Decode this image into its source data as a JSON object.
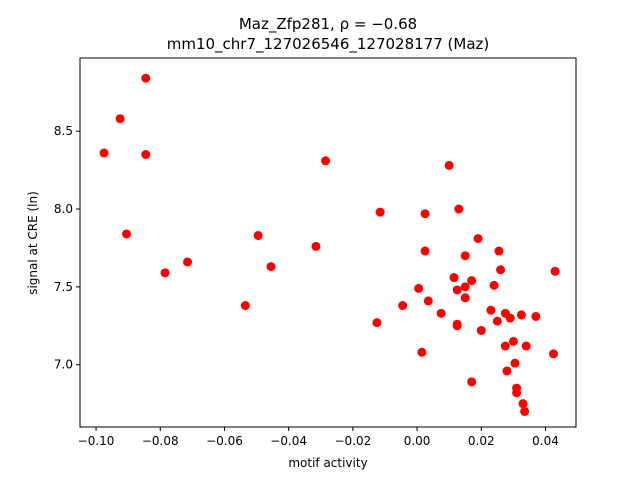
{
  "chart_data": {
    "type": "scatter",
    "title_line1": "Maz_Zfp281, ρ = −0.68",
    "title_line2": "mm10_chr7_127026546_127028177 (Maz)",
    "xlabel": "motif activity",
    "ylabel": "signal at CRE (ln)",
    "xlim": [
      -0.105,
      0.0495
    ],
    "ylim": [
      6.6,
      8.97
    ],
    "xticks": [
      -0.1,
      -0.08,
      -0.06,
      -0.04,
      -0.02,
      0.0,
      0.02,
      0.04
    ],
    "xtick_labels": [
      "−0.10",
      "−0.08",
      "−0.06",
      "−0.04",
      "−0.02",
      "0.00",
      "0.02",
      "0.04"
    ],
    "yticks": [
      7.0,
      7.5,
      8.0,
      8.5
    ],
    "ytick_labels": [
      "7.0",
      "7.5",
      "8.0",
      "8.5"
    ],
    "grid": false,
    "marker_color": "#ff0000",
    "points": [
      {
        "x": -0.0975,
        "y": 8.36
      },
      {
        "x": -0.0925,
        "y": 8.58
      },
      {
        "x": -0.0905,
        "y": 7.84
      },
      {
        "x": -0.0845,
        "y": 8.84
      },
      {
        "x": -0.0845,
        "y": 8.35
      },
      {
        "x": -0.0785,
        "y": 7.59
      },
      {
        "x": -0.0715,
        "y": 7.66
      },
      {
        "x": -0.0535,
        "y": 7.38
      },
      {
        "x": -0.0495,
        "y": 7.83
      },
      {
        "x": -0.0455,
        "y": 7.63
      },
      {
        "x": -0.0315,
        "y": 7.76
      },
      {
        "x": -0.0285,
        "y": 8.31
      },
      {
        "x": -0.0115,
        "y": 7.98
      },
      {
        "x": -0.0125,
        "y": 7.27
      },
      {
        "x": -0.0045,
        "y": 7.38
      },
      {
        "x": 0.0005,
        "y": 7.49
      },
      {
        "x": 0.0015,
        "y": 7.08
      },
      {
        "x": 0.0025,
        "y": 7.97
      },
      {
        "x": 0.0025,
        "y": 7.73
      },
      {
        "x": 0.0035,
        "y": 7.41
      },
      {
        "x": 0.0075,
        "y": 7.33
      },
      {
        "x": 0.01,
        "y": 8.28
      },
      {
        "x": 0.0115,
        "y": 7.56
      },
      {
        "x": 0.0125,
        "y": 7.48
      },
      {
        "x": 0.0125,
        "y": 7.25
      },
      {
        "x": 0.0125,
        "y": 7.26
      },
      {
        "x": 0.013,
        "y": 8.0
      },
      {
        "x": 0.015,
        "y": 7.7
      },
      {
        "x": 0.015,
        "y": 7.5
      },
      {
        "x": 0.015,
        "y": 7.43
      },
      {
        "x": 0.017,
        "y": 7.54
      },
      {
        "x": 0.017,
        "y": 6.89
      },
      {
        "x": 0.019,
        "y": 7.81
      },
      {
        "x": 0.02,
        "y": 7.22
      },
      {
        "x": 0.023,
        "y": 7.35
      },
      {
        "x": 0.024,
        "y": 7.51
      },
      {
        "x": 0.025,
        "y": 7.28
      },
      {
        "x": 0.0255,
        "y": 7.73
      },
      {
        "x": 0.026,
        "y": 7.61
      },
      {
        "x": 0.0275,
        "y": 7.33
      },
      {
        "x": 0.0275,
        "y": 7.12
      },
      {
        "x": 0.028,
        "y": 6.96
      },
      {
        "x": 0.029,
        "y": 7.3
      },
      {
        "x": 0.03,
        "y": 7.15
      },
      {
        "x": 0.0305,
        "y": 7.01
      },
      {
        "x": 0.031,
        "y": 6.85
      },
      {
        "x": 0.031,
        "y": 6.82
      },
      {
        "x": 0.0325,
        "y": 7.32
      },
      {
        "x": 0.033,
        "y": 6.75
      },
      {
        "x": 0.0335,
        "y": 6.7
      },
      {
        "x": 0.034,
        "y": 7.12
      },
      {
        "x": 0.037,
        "y": 7.31
      },
      {
        "x": 0.0425,
        "y": 7.07
      },
      {
        "x": 0.043,
        "y": 7.6
      }
    ]
  }
}
